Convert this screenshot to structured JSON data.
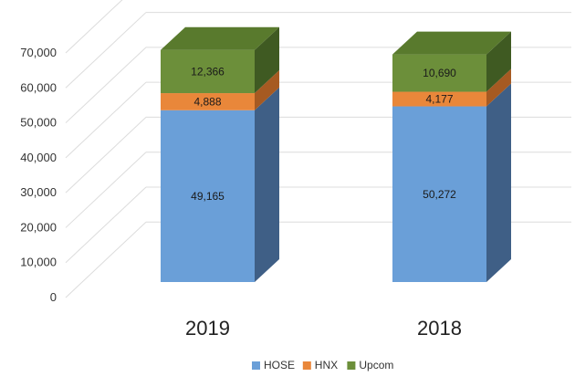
{
  "chart_data": {
    "type": "bar",
    "stacked": true,
    "three_d": true,
    "categories": [
      "2019",
      "2018"
    ],
    "series": [
      {
        "name": "HOSE",
        "values": [
          49165,
          50272
        ],
        "color": "#6a9fd8",
        "side_color": "#3f5f86"
      },
      {
        "name": "HNX",
        "values": [
          4888,
          4177
        ],
        "color": "#e9873a",
        "side_color": "#a65a22"
      },
      {
        "name": "Upcom",
        "values": [
          12366,
          10690
        ],
        "color": "#6c8f3a",
        "side_color": "#3f5a22"
      }
    ],
    "data_labels": [
      [
        "49,165",
        "50,272"
      ],
      [
        "4,888",
        "4,177"
      ],
      [
        "12,366",
        "10,690"
      ]
    ],
    "y_ticks": [
      "0",
      "10,000",
      "20,000",
      "30,000",
      "40,000",
      "50,000",
      "60,000",
      "70,000"
    ],
    "y_tick_values": [
      0,
      10000,
      20000,
      30000,
      40000,
      50000,
      60000,
      70000
    ],
    "ylim": [
      0,
      70000
    ],
    "grid": true,
    "legend_position": "bottom"
  }
}
